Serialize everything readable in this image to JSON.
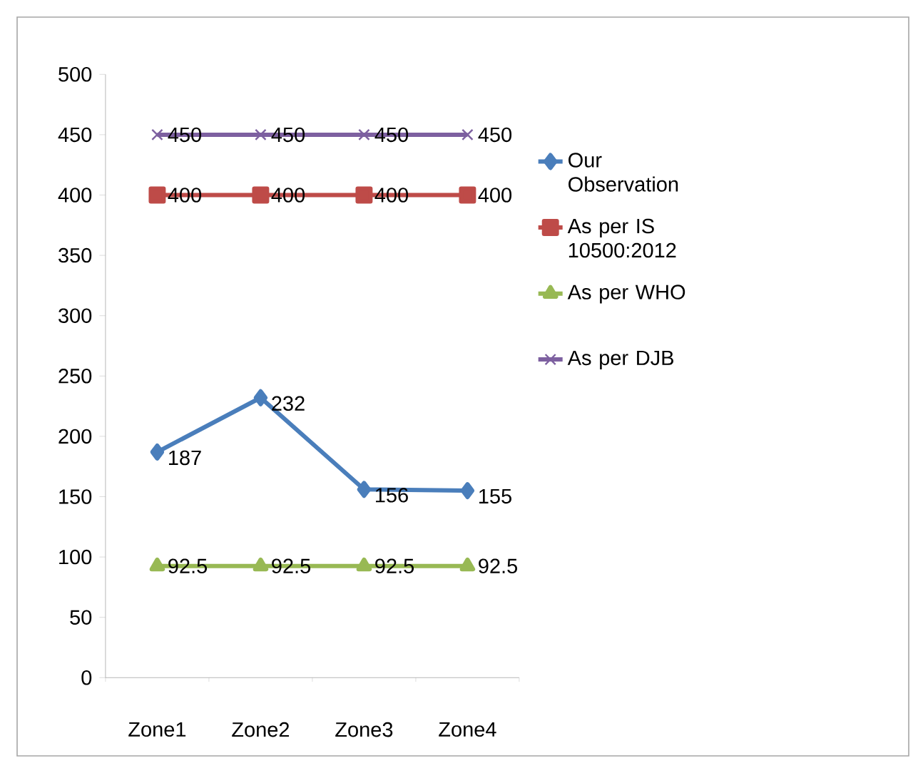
{
  "chart_data": {
    "type": "line",
    "categories": [
      "Zone1",
      "Zone2",
      "Zone3",
      "Zone4"
    ],
    "series": [
      {
        "name": "Our Observation",
        "color": "#4a7ebb",
        "marker": "diamond",
        "values": [
          187,
          232,
          156,
          155
        ]
      },
      {
        "name": "As per IS 10500:2012",
        "color": "#be4b48",
        "marker": "square",
        "values": [
          400,
          400,
          400,
          400
        ]
      },
      {
        "name": "As per WHO",
        "color": "#98b954",
        "marker": "triangle",
        "values": [
          92.5,
          92.5,
          92.5,
          92.5
        ]
      },
      {
        "name": "As per DJB",
        "color": "#7d60a0",
        "marker": "cross",
        "values": [
          450,
          450,
          450,
          450
        ]
      }
    ],
    "ylim": [
      0,
      500
    ],
    "yticks": [
      0,
      50,
      100,
      150,
      200,
      250,
      300,
      350,
      400,
      450,
      500
    ],
    "data_labels": true,
    "legend": "right",
    "grid": false,
    "line_style": "solid"
  }
}
